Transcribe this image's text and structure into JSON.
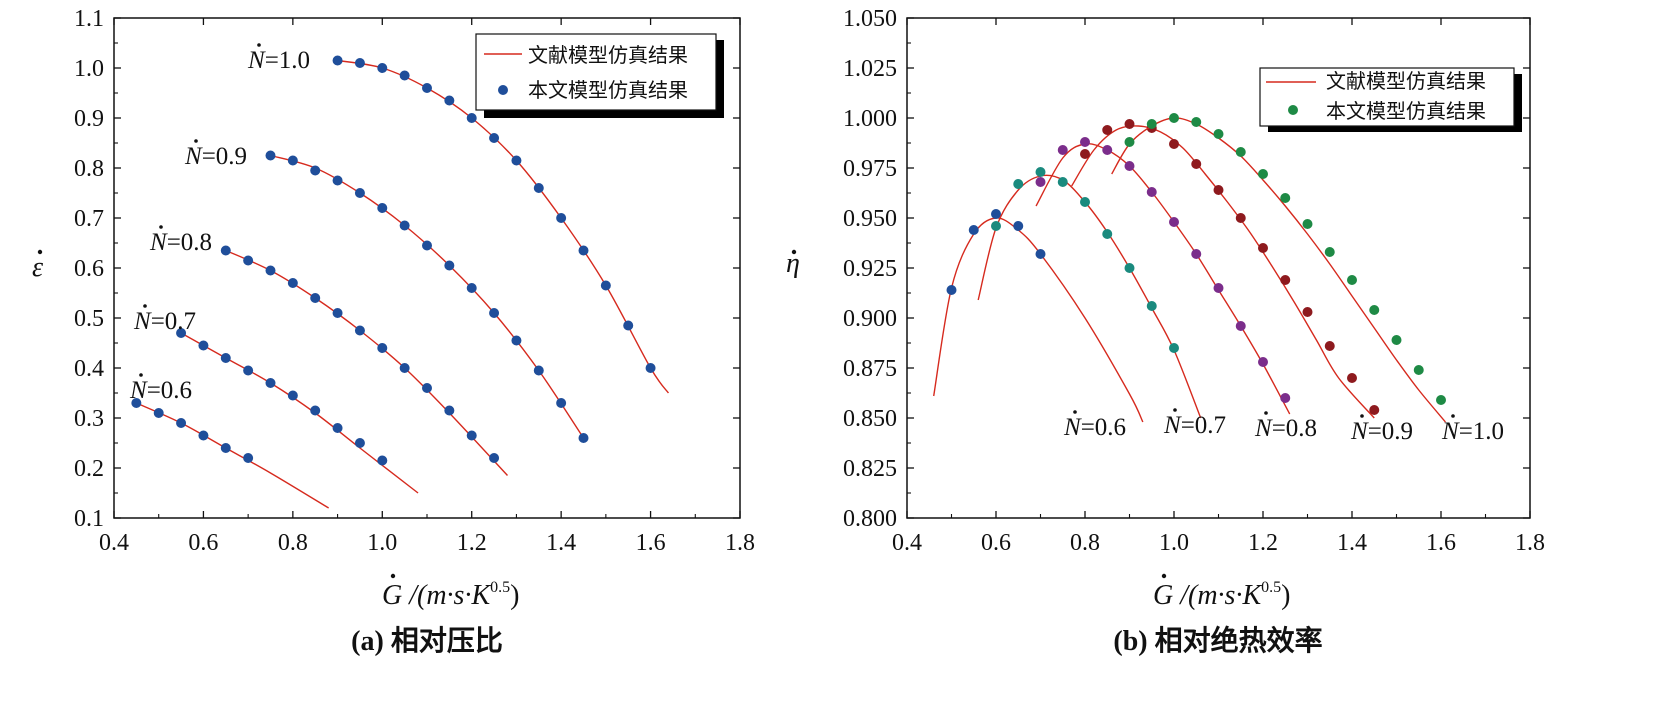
{
  "chart_data": [
    {
      "type": "line",
      "xlabel": "G /(m·s·K",
      "xlabel_sup": "0.5",
      "xlabel_close": ")",
      "ylabel": "ε",
      "caption": "(a) 相对压比",
      "xlim": [
        0.4,
        1.8
      ],
      "ylim": [
        0.1,
        1.1
      ],
      "xticks": [
        "0.4",
        "0.6",
        "0.8",
        "1.0",
        "1.2",
        "1.4",
        "1.6",
        "1.8"
      ],
      "yticks": [
        "0.1",
        "0.2",
        "0.3",
        "0.4",
        "0.5",
        "0.6",
        "0.7",
        "0.8",
        "0.9",
        "1.0",
        "1.1"
      ],
      "legend": {
        "line_label": "文献模型仿真结果",
        "marker_label": "本文模型仿真结果",
        "placement": "top-right"
      },
      "series": [
        {
          "name": "N=0.6",
          "label": "N=0.6",
          "line": [
            [
              0.45,
              0.33
            ],
            [
              0.55,
              0.29
            ],
            [
              0.65,
              0.24
            ],
            [
              0.75,
              0.19
            ],
            [
              0.88,
              0.12
            ]
          ],
          "points": [
            [
              0.45,
              0.33
            ],
            [
              0.5,
              0.31
            ],
            [
              0.55,
              0.29
            ],
            [
              0.6,
              0.265
            ],
            [
              0.65,
              0.24
            ],
            [
              0.7,
              0.22
            ]
          ]
        },
        {
          "name": "N=0.7",
          "label": "N=0.7",
          "line": [
            [
              0.55,
              0.47
            ],
            [
              0.65,
              0.42
            ],
            [
              0.75,
              0.37
            ],
            [
              0.85,
              0.31
            ],
            [
              0.95,
              0.24
            ],
            [
              1.08,
              0.15
            ]
          ],
          "points": [
            [
              0.55,
              0.47
            ],
            [
              0.6,
              0.445
            ],
            [
              0.65,
              0.42
            ],
            [
              0.7,
              0.395
            ],
            [
              0.75,
              0.37
            ],
            [
              0.8,
              0.345
            ],
            [
              0.85,
              0.315
            ],
            [
              0.9,
              0.28
            ],
            [
              0.95,
              0.25
            ],
            [
              1.0,
              0.215
            ]
          ]
        },
        {
          "name": "N=0.8",
          "label": "N=0.8",
          "line": [
            [
              0.65,
              0.635
            ],
            [
              0.75,
              0.595
            ],
            [
              0.85,
              0.54
            ],
            [
              0.95,
              0.475
            ],
            [
              1.05,
              0.4
            ],
            [
              1.15,
              0.31
            ],
            [
              1.28,
              0.185
            ]
          ],
          "points": [
            [
              0.65,
              0.635
            ],
            [
              0.7,
              0.615
            ],
            [
              0.75,
              0.595
            ],
            [
              0.8,
              0.57
            ],
            [
              0.85,
              0.54
            ],
            [
              0.9,
              0.51
            ],
            [
              0.95,
              0.475
            ],
            [
              1.0,
              0.44
            ],
            [
              1.05,
              0.4
            ],
            [
              1.1,
              0.36
            ],
            [
              1.15,
              0.315
            ],
            [
              1.2,
              0.265
            ],
            [
              1.25,
              0.22
            ]
          ]
        },
        {
          "name": "N=0.9",
          "label": "N=0.9",
          "line": [
            [
              0.75,
              0.825
            ],
            [
              0.85,
              0.8
            ],
            [
              0.95,
              0.75
            ],
            [
              1.05,
              0.685
            ],
            [
              1.15,
              0.605
            ],
            [
              1.25,
              0.51
            ],
            [
              1.35,
              0.395
            ],
            [
              1.45,
              0.26
            ]
          ],
          "points": [
            [
              0.75,
              0.825
            ],
            [
              0.8,
              0.815
            ],
            [
              0.85,
              0.795
            ],
            [
              0.9,
              0.775
            ],
            [
              0.95,
              0.75
            ],
            [
              1.0,
              0.72
            ],
            [
              1.05,
              0.685
            ],
            [
              1.1,
              0.645
            ],
            [
              1.15,
              0.605
            ],
            [
              1.2,
              0.56
            ],
            [
              1.25,
              0.51
            ],
            [
              1.3,
              0.455
            ],
            [
              1.35,
              0.395
            ],
            [
              1.4,
              0.33
            ],
            [
              1.45,
              0.26
            ]
          ]
        },
        {
          "name": "N=1.0",
          "label": "N=1.0",
          "line": [
            [
              0.9,
              1.015
            ],
            [
              1.0,
              1.0
            ],
            [
              1.1,
              0.96
            ],
            [
              1.2,
              0.9
            ],
            [
              1.3,
              0.815
            ],
            [
              1.4,
              0.7
            ],
            [
              1.5,
              0.565
            ],
            [
              1.6,
              0.4
            ],
            [
              1.64,
              0.35
            ]
          ],
          "points": [
            [
              0.9,
              1.015
            ],
            [
              0.95,
              1.01
            ],
            [
              1.0,
              1.0
            ],
            [
              1.05,
              0.985
            ],
            [
              1.1,
              0.96
            ],
            [
              1.15,
              0.935
            ],
            [
              1.2,
              0.9
            ],
            [
              1.25,
              0.86
            ],
            [
              1.3,
              0.815
            ],
            [
              1.35,
              0.76
            ],
            [
              1.4,
              0.7
            ],
            [
              1.45,
              0.635
            ],
            [
              1.5,
              0.565
            ],
            [
              1.55,
              0.485
            ],
            [
              1.6,
              0.4
            ]
          ]
        }
      ]
    },
    {
      "type": "line",
      "xlabel": "G /(m·s·K",
      "xlabel_sup": "0.5",
      "xlabel_close": ")",
      "ylabel": "η",
      "caption": "(b) 相对绝热效率",
      "xlim": [
        0.4,
        1.8
      ],
      "ylim": [
        0.8,
        1.05
      ],
      "xticks": [
        "0.4",
        "0.6",
        "0.8",
        "1.0",
        "1.2",
        "1.4",
        "1.6",
        "1.8"
      ],
      "yticks": [
        "0.800",
        "0.825",
        "0.850",
        "0.875",
        "0.900",
        "0.925",
        "0.950",
        "0.975",
        "1.000",
        "1.025",
        "1.050"
      ],
      "legend": {
        "line_label": "文献模型仿真结果",
        "marker_label": "本文模型仿真结果",
        "placement": "top-right"
      },
      "series": [
        {
          "name": "N=0.6",
          "label": "N=0.6",
          "color": "#1f4e9a",
          "line": [
            [
              0.46,
              0.861
            ],
            [
              0.5,
              0.915
            ],
            [
              0.55,
              0.942
            ],
            [
              0.6,
              0.95
            ],
            [
              0.65,
              0.944
            ],
            [
              0.7,
              0.932
            ],
            [
              0.8,
              0.9
            ],
            [
              0.9,
              0.862
            ],
            [
              0.93,
              0.848
            ]
          ],
          "points": [
            [
              0.5,
              0.914
            ],
            [
              0.55,
              0.944
            ],
            [
              0.6,
              0.952
            ],
            [
              0.65,
              0.946
            ],
            [
              0.7,
              0.932
            ]
          ]
        },
        {
          "name": "N=0.7",
          "label": "N=0.7",
          "color": "#1a8a7e",
          "line": [
            [
              0.56,
              0.909
            ],
            [
              0.6,
              0.945
            ],
            [
              0.65,
              0.964
            ],
            [
              0.7,
              0.971
            ],
            [
              0.75,
              0.969
            ],
            [
              0.8,
              0.958
            ],
            [
              0.85,
              0.943
            ],
            [
              0.9,
              0.925
            ],
            [
              0.95,
              0.905
            ],
            [
              1.0,
              0.884
            ],
            [
              1.06,
              0.85
            ]
          ],
          "points": [
            [
              0.6,
              0.946
            ],
            [
              0.65,
              0.967
            ],
            [
              0.7,
              0.973
            ],
            [
              0.75,
              0.968
            ],
            [
              0.8,
              0.958
            ],
            [
              0.85,
              0.942
            ],
            [
              0.9,
              0.925
            ],
            [
              0.95,
              0.906
            ],
            [
              1.0,
              0.885
            ]
          ]
        },
        {
          "name": "N=0.8",
          "label": "N=0.8",
          "color": "#7b2d8b",
          "line": [
            [
              0.69,
              0.956
            ],
            [
              0.75,
              0.98
            ],
            [
              0.8,
              0.987
            ],
            [
              0.85,
              0.984
            ],
            [
              0.9,
              0.976
            ],
            [
              0.95,
              0.963
            ],
            [
              1.0,
              0.948
            ],
            [
              1.05,
              0.932
            ],
            [
              1.1,
              0.914
            ],
            [
              1.15,
              0.896
            ],
            [
              1.2,
              0.877
            ],
            [
              1.26,
              0.852
            ]
          ],
          "points": [
            [
              0.7,
              0.968
            ],
            [
              0.75,
              0.984
            ],
            [
              0.8,
              0.988
            ],
            [
              0.85,
              0.984
            ],
            [
              0.9,
              0.976
            ],
            [
              0.95,
              0.963
            ],
            [
              1.0,
              0.948
            ],
            [
              1.05,
              0.932
            ],
            [
              1.1,
              0.915
            ],
            [
              1.15,
              0.896
            ],
            [
              1.2,
              0.878
            ],
            [
              1.25,
              0.86
            ]
          ]
        },
        {
          "name": "N=0.9",
          "label": "N=0.9",
          "color": "#8e1a1e",
          "line": [
            [
              0.77,
              0.966
            ],
            [
              0.82,
              0.984
            ],
            [
              0.87,
              0.994
            ],
            [
              0.92,
              0.996
            ],
            [
              0.97,
              0.993
            ],
            [
              1.02,
              0.985
            ],
            [
              1.07,
              0.972
            ],
            [
              1.12,
              0.958
            ],
            [
              1.17,
              0.943
            ],
            [
              1.22,
              0.926
            ],
            [
              1.27,
              0.908
            ],
            [
              1.32,
              0.889
            ],
            [
              1.37,
              0.87
            ],
            [
              1.45,
              0.85
            ]
          ],
          "points": [
            [
              0.8,
              0.982
            ],
            [
              0.85,
              0.994
            ],
            [
              0.9,
              0.997
            ],
            [
              0.95,
              0.995
            ],
            [
              1.0,
              0.987
            ],
            [
              1.05,
              0.977
            ],
            [
              1.1,
              0.964
            ],
            [
              1.15,
              0.95
            ],
            [
              1.2,
              0.935
            ],
            [
              1.25,
              0.919
            ],
            [
              1.3,
              0.903
            ],
            [
              1.35,
              0.886
            ],
            [
              1.4,
              0.87
            ],
            [
              1.45,
              0.854
            ]
          ]
        },
        {
          "name": "N=1.0",
          "label": "N=1.0",
          "color": "#1e8a45",
          "line": [
            [
              0.86,
              0.972
            ],
            [
              0.9,
              0.987
            ],
            [
              0.95,
              0.996
            ],
            [
              1.0,
              1.0
            ],
            [
              1.05,
              0.997
            ],
            [
              1.1,
              0.99
            ],
            [
              1.15,
              0.981
            ],
            [
              1.2,
              0.969
            ],
            [
              1.25,
              0.956
            ],
            [
              1.3,
              0.942
            ],
            [
              1.35,
              0.927
            ],
            [
              1.4,
              0.911
            ],
            [
              1.45,
              0.895
            ],
            [
              1.5,
              0.879
            ],
            [
              1.55,
              0.864
            ],
            [
              1.61,
              0.848
            ]
          ],
          "points": [
            [
              0.9,
              0.988
            ],
            [
              0.95,
              0.997
            ],
            [
              1.0,
              1.0
            ],
            [
              1.05,
              0.998
            ],
            [
              1.1,
              0.992
            ],
            [
              1.15,
              0.983
            ],
            [
              1.2,
              0.972
            ],
            [
              1.25,
              0.96
            ],
            [
              1.3,
              0.947
            ],
            [
              1.35,
              0.933
            ],
            [
              1.4,
              0.919
            ],
            [
              1.45,
              0.904
            ],
            [
              1.5,
              0.889
            ],
            [
              1.55,
              0.874
            ],
            [
              1.6,
              0.859
            ]
          ]
        }
      ]
    }
  ],
  "style": {
    "line_color": "#d62a1e",
    "marker_color_a": "#1f4e9a",
    "axis_color": "#111111"
  }
}
